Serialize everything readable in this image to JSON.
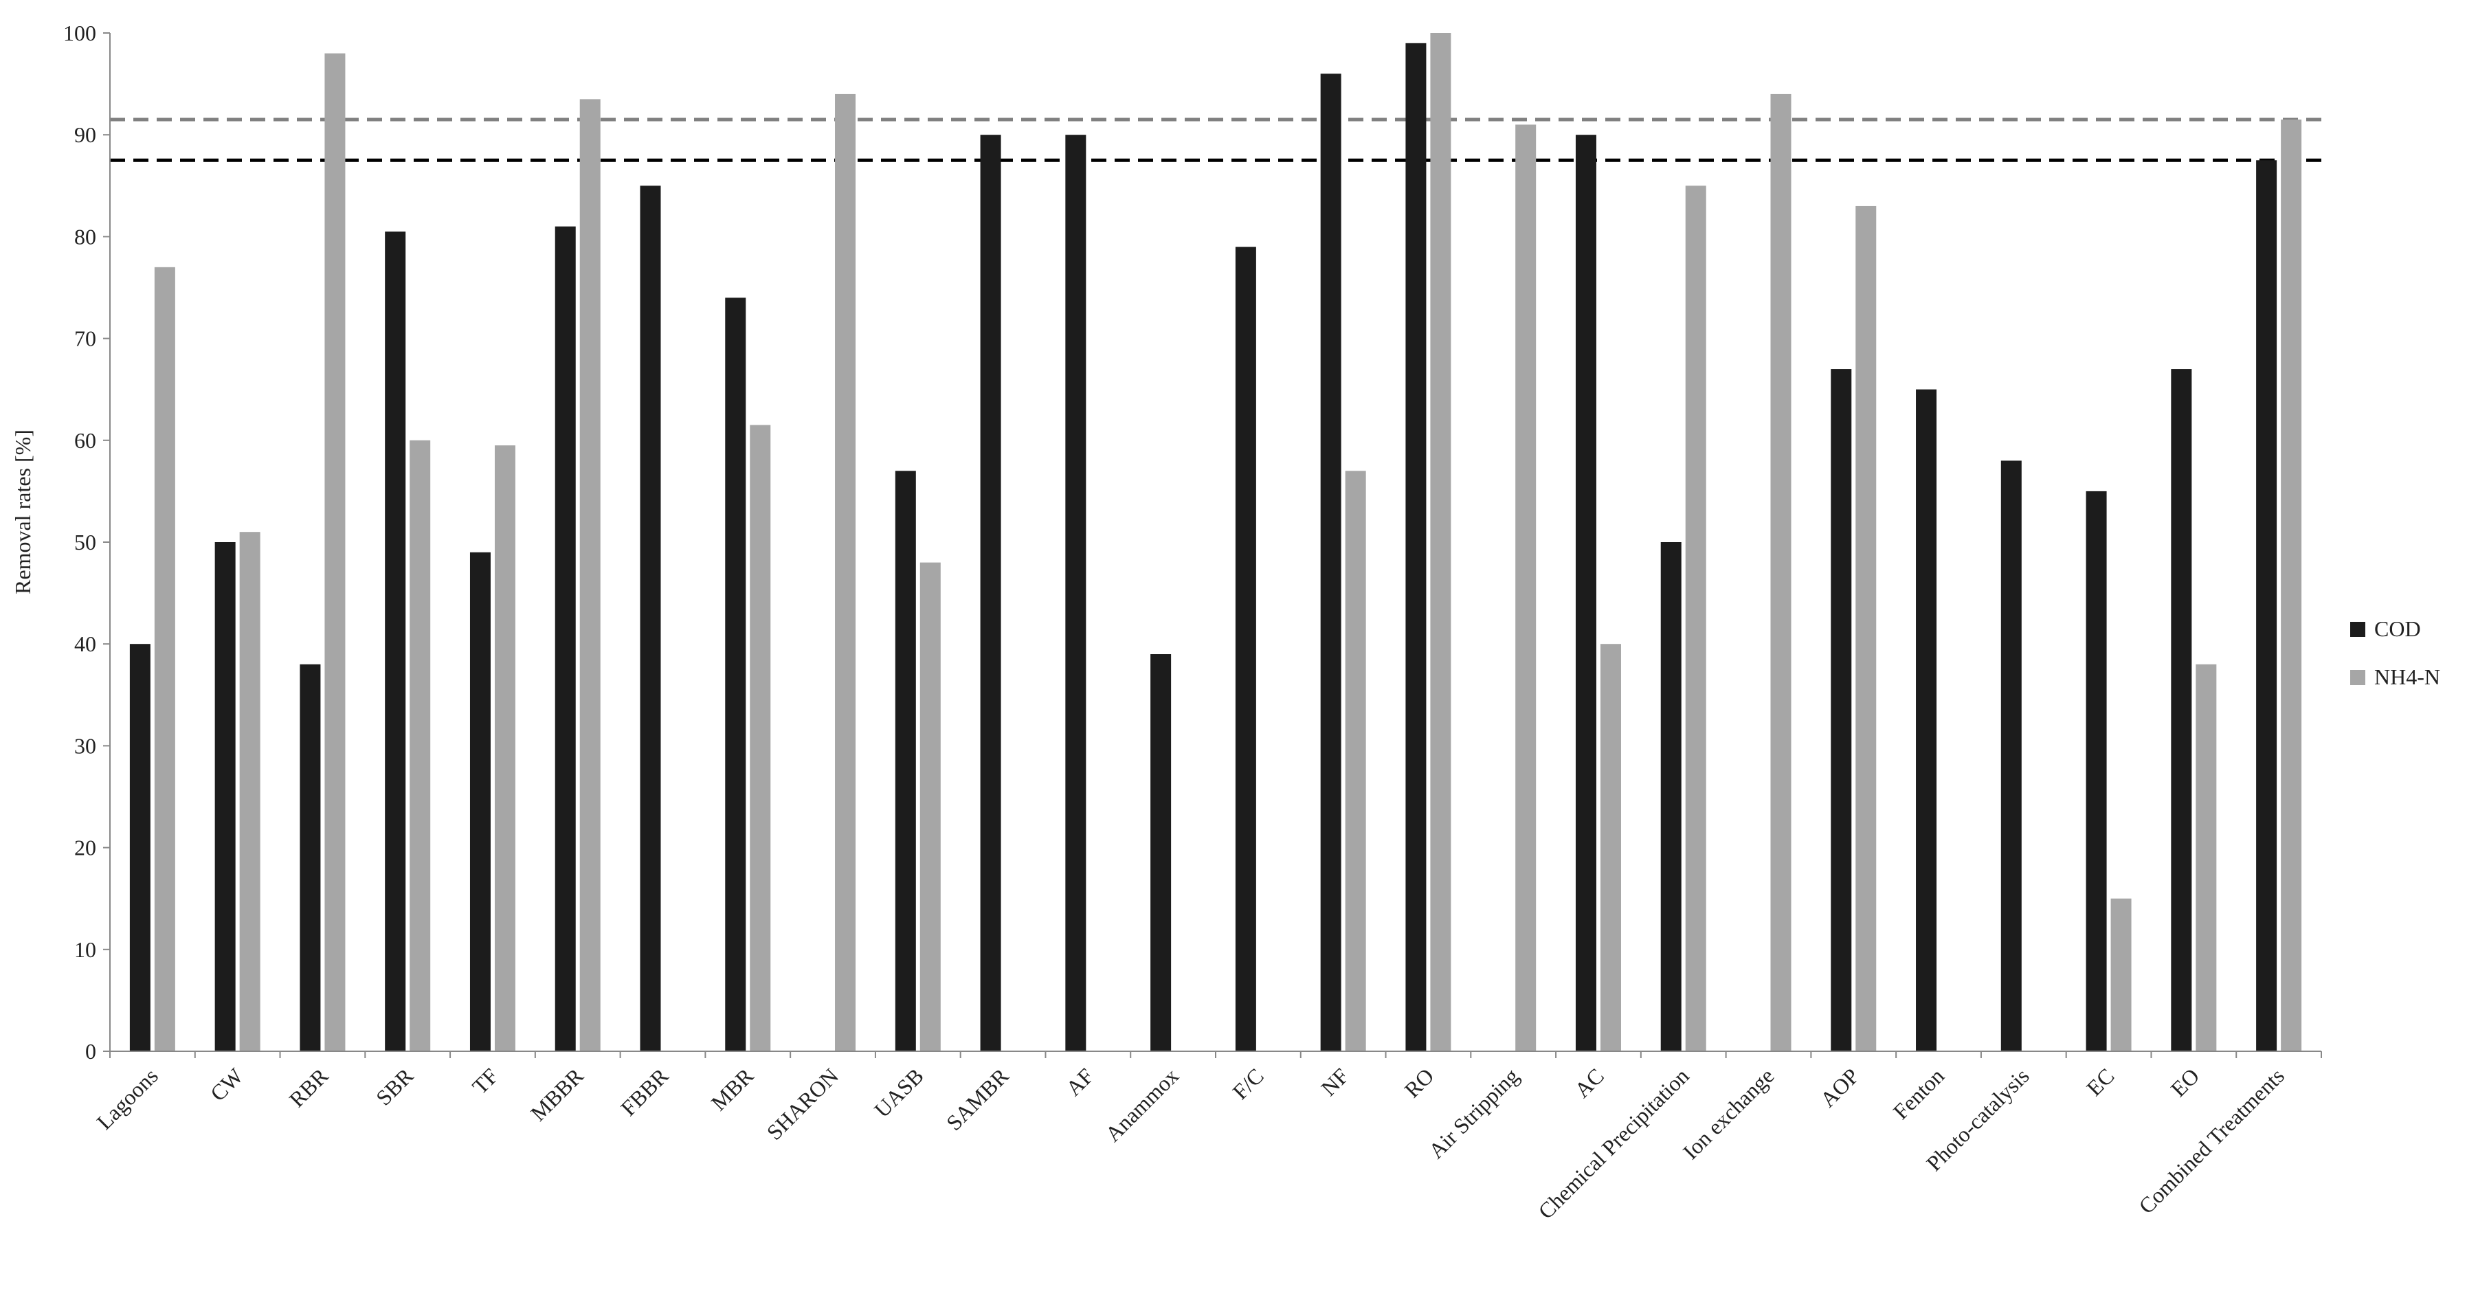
{
  "chart_data": {
    "type": "bar",
    "ylabel": "Removal rates [%]",
    "ylim": [
      0,
      100
    ],
    "yticks": [
      0,
      10,
      20,
      30,
      40,
      50,
      60,
      70,
      80,
      90,
      100
    ],
    "grid": false,
    "legend_position": "right",
    "categories": [
      "Lagoons",
      "CW",
      "RBR",
      "SBR",
      "TF",
      "MBBR",
      "FBBR",
      "MBR",
      "SHARON",
      "UASB",
      "SAMBR",
      "AF",
      "Anammox",
      "F/C",
      "NF",
      "RO",
      "Air Stripping",
      "AC",
      "Chemical Precipitation",
      "Ion exchange",
      "AOP",
      "Fenton",
      "Photo-catalysis",
      "EC",
      "EO",
      "Combined Treatments"
    ],
    "series": [
      {
        "name": "COD",
        "color": "#1c1c1c",
        "values": [
          40,
          50,
          38,
          80.5,
          49,
          81,
          85,
          74,
          null,
          57,
          90,
          90,
          39,
          79,
          96,
          99,
          null,
          90,
          50,
          null,
          67,
          65,
          58,
          55,
          67,
          87.5
        ]
      },
      {
        "name": "NH4-N",
        "color": "#a6a6a6",
        "values": [
          77,
          51,
          98,
          60,
          59.5,
          93.5,
          null,
          61.5,
          94,
          48,
          null,
          null,
          null,
          null,
          57,
          100,
          91,
          40,
          85,
          94,
          83,
          null,
          null,
          15,
          38,
          91.5
        ]
      }
    ],
    "reference_lines": [
      {
        "value": 87.5,
        "color": "#000000",
        "style": "dashed"
      },
      {
        "value": 91.5,
        "color": "#808080",
        "style": "dashed"
      }
    ]
  }
}
